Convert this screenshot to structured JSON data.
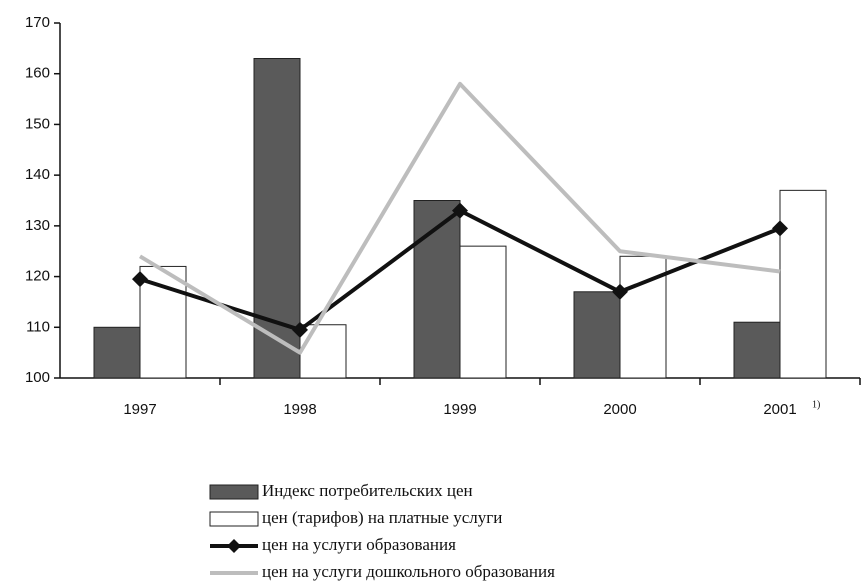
{
  "chart_data": {
    "type": "bar",
    "categories": [
      "1997",
      "1998",
      "1999",
      "2000",
      "2001"
    ],
    "annotations": [
      "1)"
    ],
    "ylim": [
      100,
      170
    ],
    "yticks": [
      100,
      110,
      120,
      130,
      140,
      150,
      160,
      170
    ],
    "series": [
      {
        "name": "Индекс потребительских цен",
        "type": "bar",
        "color": "#5a5a5a",
        "values": [
          110,
          163,
          135,
          117,
          111
        ]
      },
      {
        "name": "цен (тарифов) на платные услуги",
        "type": "bar",
        "color": "#ffffff",
        "values": [
          122,
          110.5,
          126,
          124,
          137
        ]
      },
      {
        "name": "цен на услуги образования",
        "type": "line",
        "color": "#111111",
        "values": [
          119.5,
          109.5,
          133,
          117,
          129.5
        ]
      },
      {
        "name": "цен на услуги дошкольного образования",
        "type": "line",
        "color": "#bdbdbd",
        "values": [
          124,
          105,
          158,
          125,
          121
        ]
      }
    ]
  }
}
